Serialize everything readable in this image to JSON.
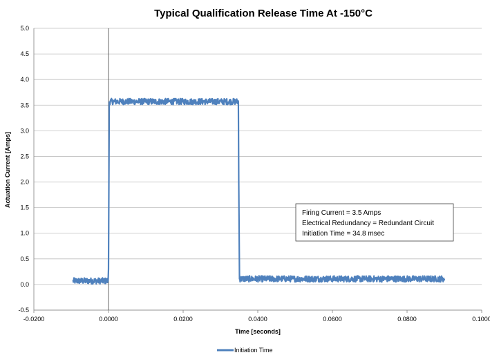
{
  "chart_data": {
    "type": "line",
    "title": "Typical Qualification Release Time At -150°C",
    "xlabel": "Time [seconds]",
    "ylabel": "Actuation Current [Amps]",
    "xlim": [
      -0.02,
      0.1
    ],
    "ylim": [
      -0.5,
      5.0
    ],
    "x_ticks": [
      "-0.0200",
      "0.0000",
      "0.0200",
      "0.0400",
      "0.0600",
      "0.0800",
      "0.1000"
    ],
    "x_tick_values": [
      -0.02,
      0.0,
      0.02,
      0.04,
      0.06,
      0.08,
      0.1
    ],
    "y_ticks": [
      "-0.5",
      "0.0",
      "0.5",
      "1.0",
      "1.5",
      "2.0",
      "2.5",
      "3.0",
      "3.5",
      "4.0",
      "4.5",
      "5.0"
    ],
    "y_tick_values": [
      -0.5,
      0.0,
      0.5,
      1.0,
      1.5,
      2.0,
      2.5,
      3.0,
      3.5,
      4.0,
      4.5,
      5.0
    ],
    "grid": "horizontal",
    "legend_position": "bottom",
    "series": [
      {
        "name": "Initiation Time",
        "color": "#4f81bd",
        "x": [
          -0.0095,
          -0.0001,
          0.0,
          0.0002,
          0.0348,
          0.0349,
          0.0351,
          0.09
        ],
        "y": [
          0.07,
          0.07,
          0.3,
          3.57,
          3.57,
          2.0,
          0.11,
          0.11
        ],
        "noise": 0.06
      }
    ],
    "annotation": [
      "Firing Current = 3.5 Amps",
      "Electrical Redundancy = Redundant Circuit",
      "Initiation Time = 34.8 msec"
    ]
  }
}
